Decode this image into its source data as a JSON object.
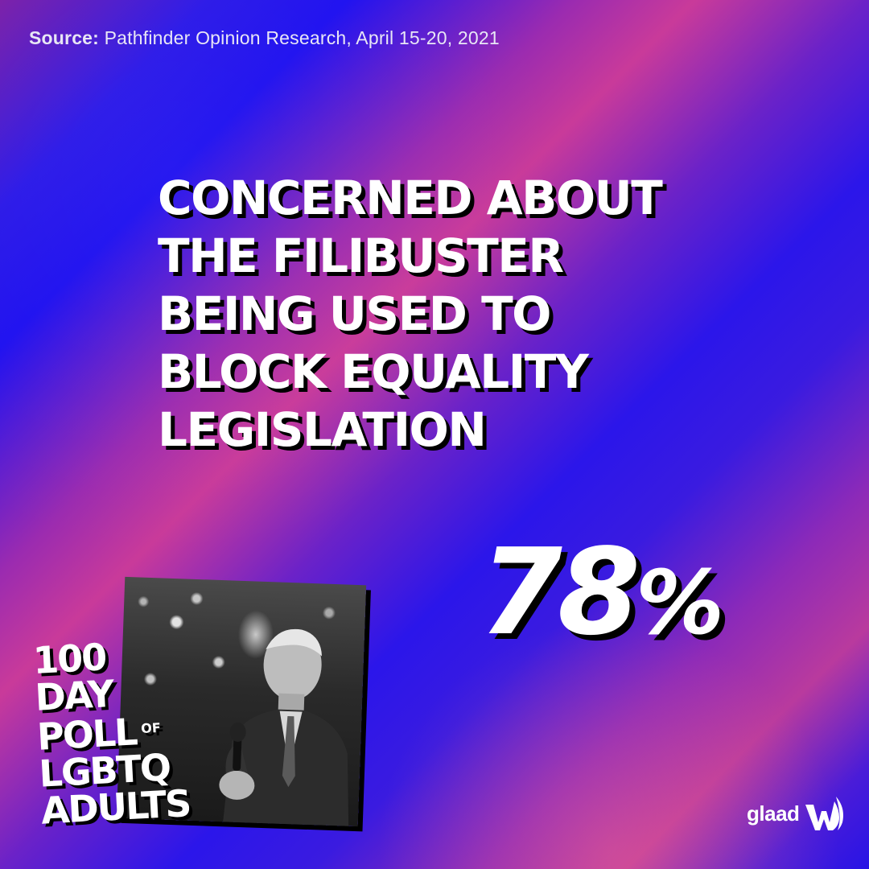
{
  "source": {
    "label": "Source:",
    "text": "Pathfinder Opinion Research, April 15-20, 2021"
  },
  "headline": {
    "lines": [
      "CONCERNED ABOUT",
      "THE FILIBUSTER",
      "BEING USED TO",
      "BLOCK EQUALITY",
      "LEGISLATION"
    ]
  },
  "stat": {
    "value": "78",
    "unit": "%"
  },
  "poll": {
    "lines": [
      "100",
      "DAY",
      "POLL",
      "LGBTQ",
      "ADULTS"
    ],
    "of": "OF"
  },
  "logo": {
    "wordmark": "glaad",
    "icon": "glaad-wave-icon"
  },
  "photo": {
    "icon": "speaker-photo"
  },
  "colors": {
    "background_blue": "#2a18e8",
    "background_magenta": "#c93a9a",
    "text": "#ffffff",
    "shadow": "#000000"
  }
}
